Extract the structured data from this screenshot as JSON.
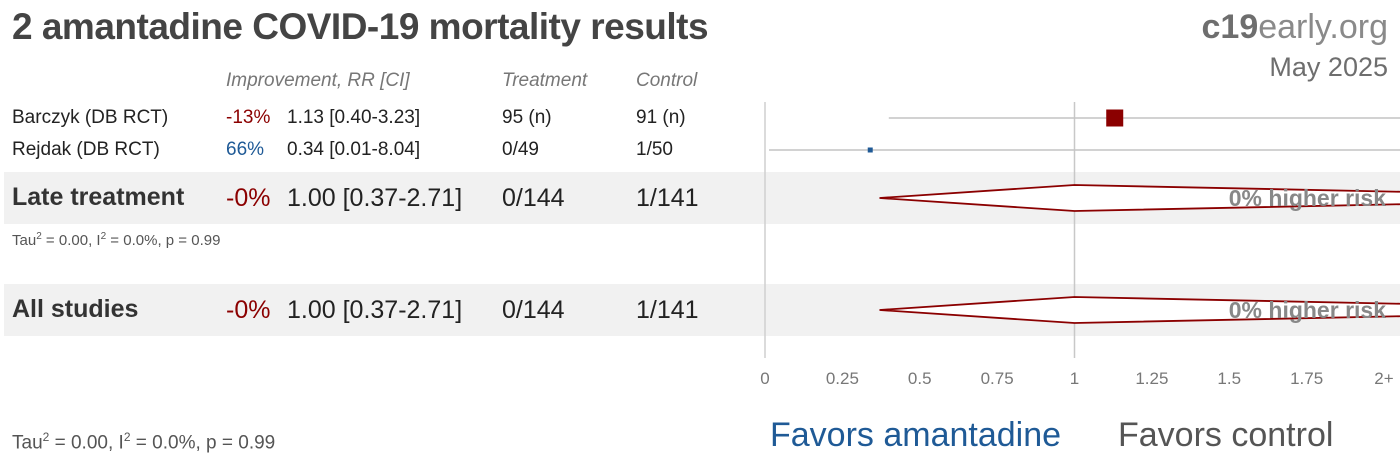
{
  "title": "2 amantadine COVID-19 mortality results",
  "brand": {
    "bold": "c19",
    "rest": "early.org"
  },
  "date": "May 2025",
  "headers": {
    "improvement": "Improvement, RR [CI]",
    "treatment": "Treatment",
    "control": "Control"
  },
  "studies": [
    {
      "name": "Barczyk (DB RCT)",
      "improvement": "-13%",
      "rr_text": "1.13 [0.40-3.23]",
      "treatment": "95 (n)",
      "control": "91 (n)"
    },
    {
      "name": "Rejdak (DB RCT)",
      "improvement": "66%",
      "rr_text": "0.34 [0.01-8.04]",
      "treatment": "0/49",
      "control": "1/50"
    }
  ],
  "late": {
    "name": "Late treatment",
    "improvement": "-0%",
    "rr_text": "1.00 [0.37-2.71]",
    "treatment": "0/144",
    "control": "1/141",
    "risk_label": "0% higher risk",
    "stat_tau": "0.00",
    "stat_i2": "0.0%",
    "stat_p": "0.99"
  },
  "all": {
    "name": "All studies",
    "improvement": "-0%",
    "rr_text": "1.00 [0.37-2.71]",
    "treatment": "0/144",
    "control": "1/141",
    "risk_label": "0% higher risk"
  },
  "footer_stat": {
    "tau": "0.00",
    "i2": "0.0%",
    "p": "0.99"
  },
  "favors_left": "Favors amantadine",
  "favors_right": "Favors control",
  "colors": {
    "negative": "#8b0000",
    "positive": "#1f5a96",
    "diamond": "#8b0000"
  },
  "chart_data": {
    "type": "forest",
    "x_ticks": [
      "0",
      "0.25",
      "0.5",
      "0.75",
      "1",
      "1.25",
      "1.5",
      "1.75",
      "2+"
    ],
    "xlim": [
      0,
      2
    ],
    "reference_line": 1,
    "series": [
      {
        "name": "Barczyk (DB RCT)",
        "rr": 1.13,
        "lo": 0.4,
        "hi": 3.23,
        "kind": "study"
      },
      {
        "name": "Rejdak (DB RCT)",
        "rr": 0.34,
        "lo": 0.01,
        "hi": 8.04,
        "kind": "study"
      },
      {
        "name": "Late treatment",
        "rr": 1.0,
        "lo": 0.37,
        "hi": 2.71,
        "kind": "pooled"
      },
      {
        "name": "All studies",
        "rr": 1.0,
        "lo": 0.37,
        "hi": 2.71,
        "kind": "pooled"
      }
    ]
  }
}
